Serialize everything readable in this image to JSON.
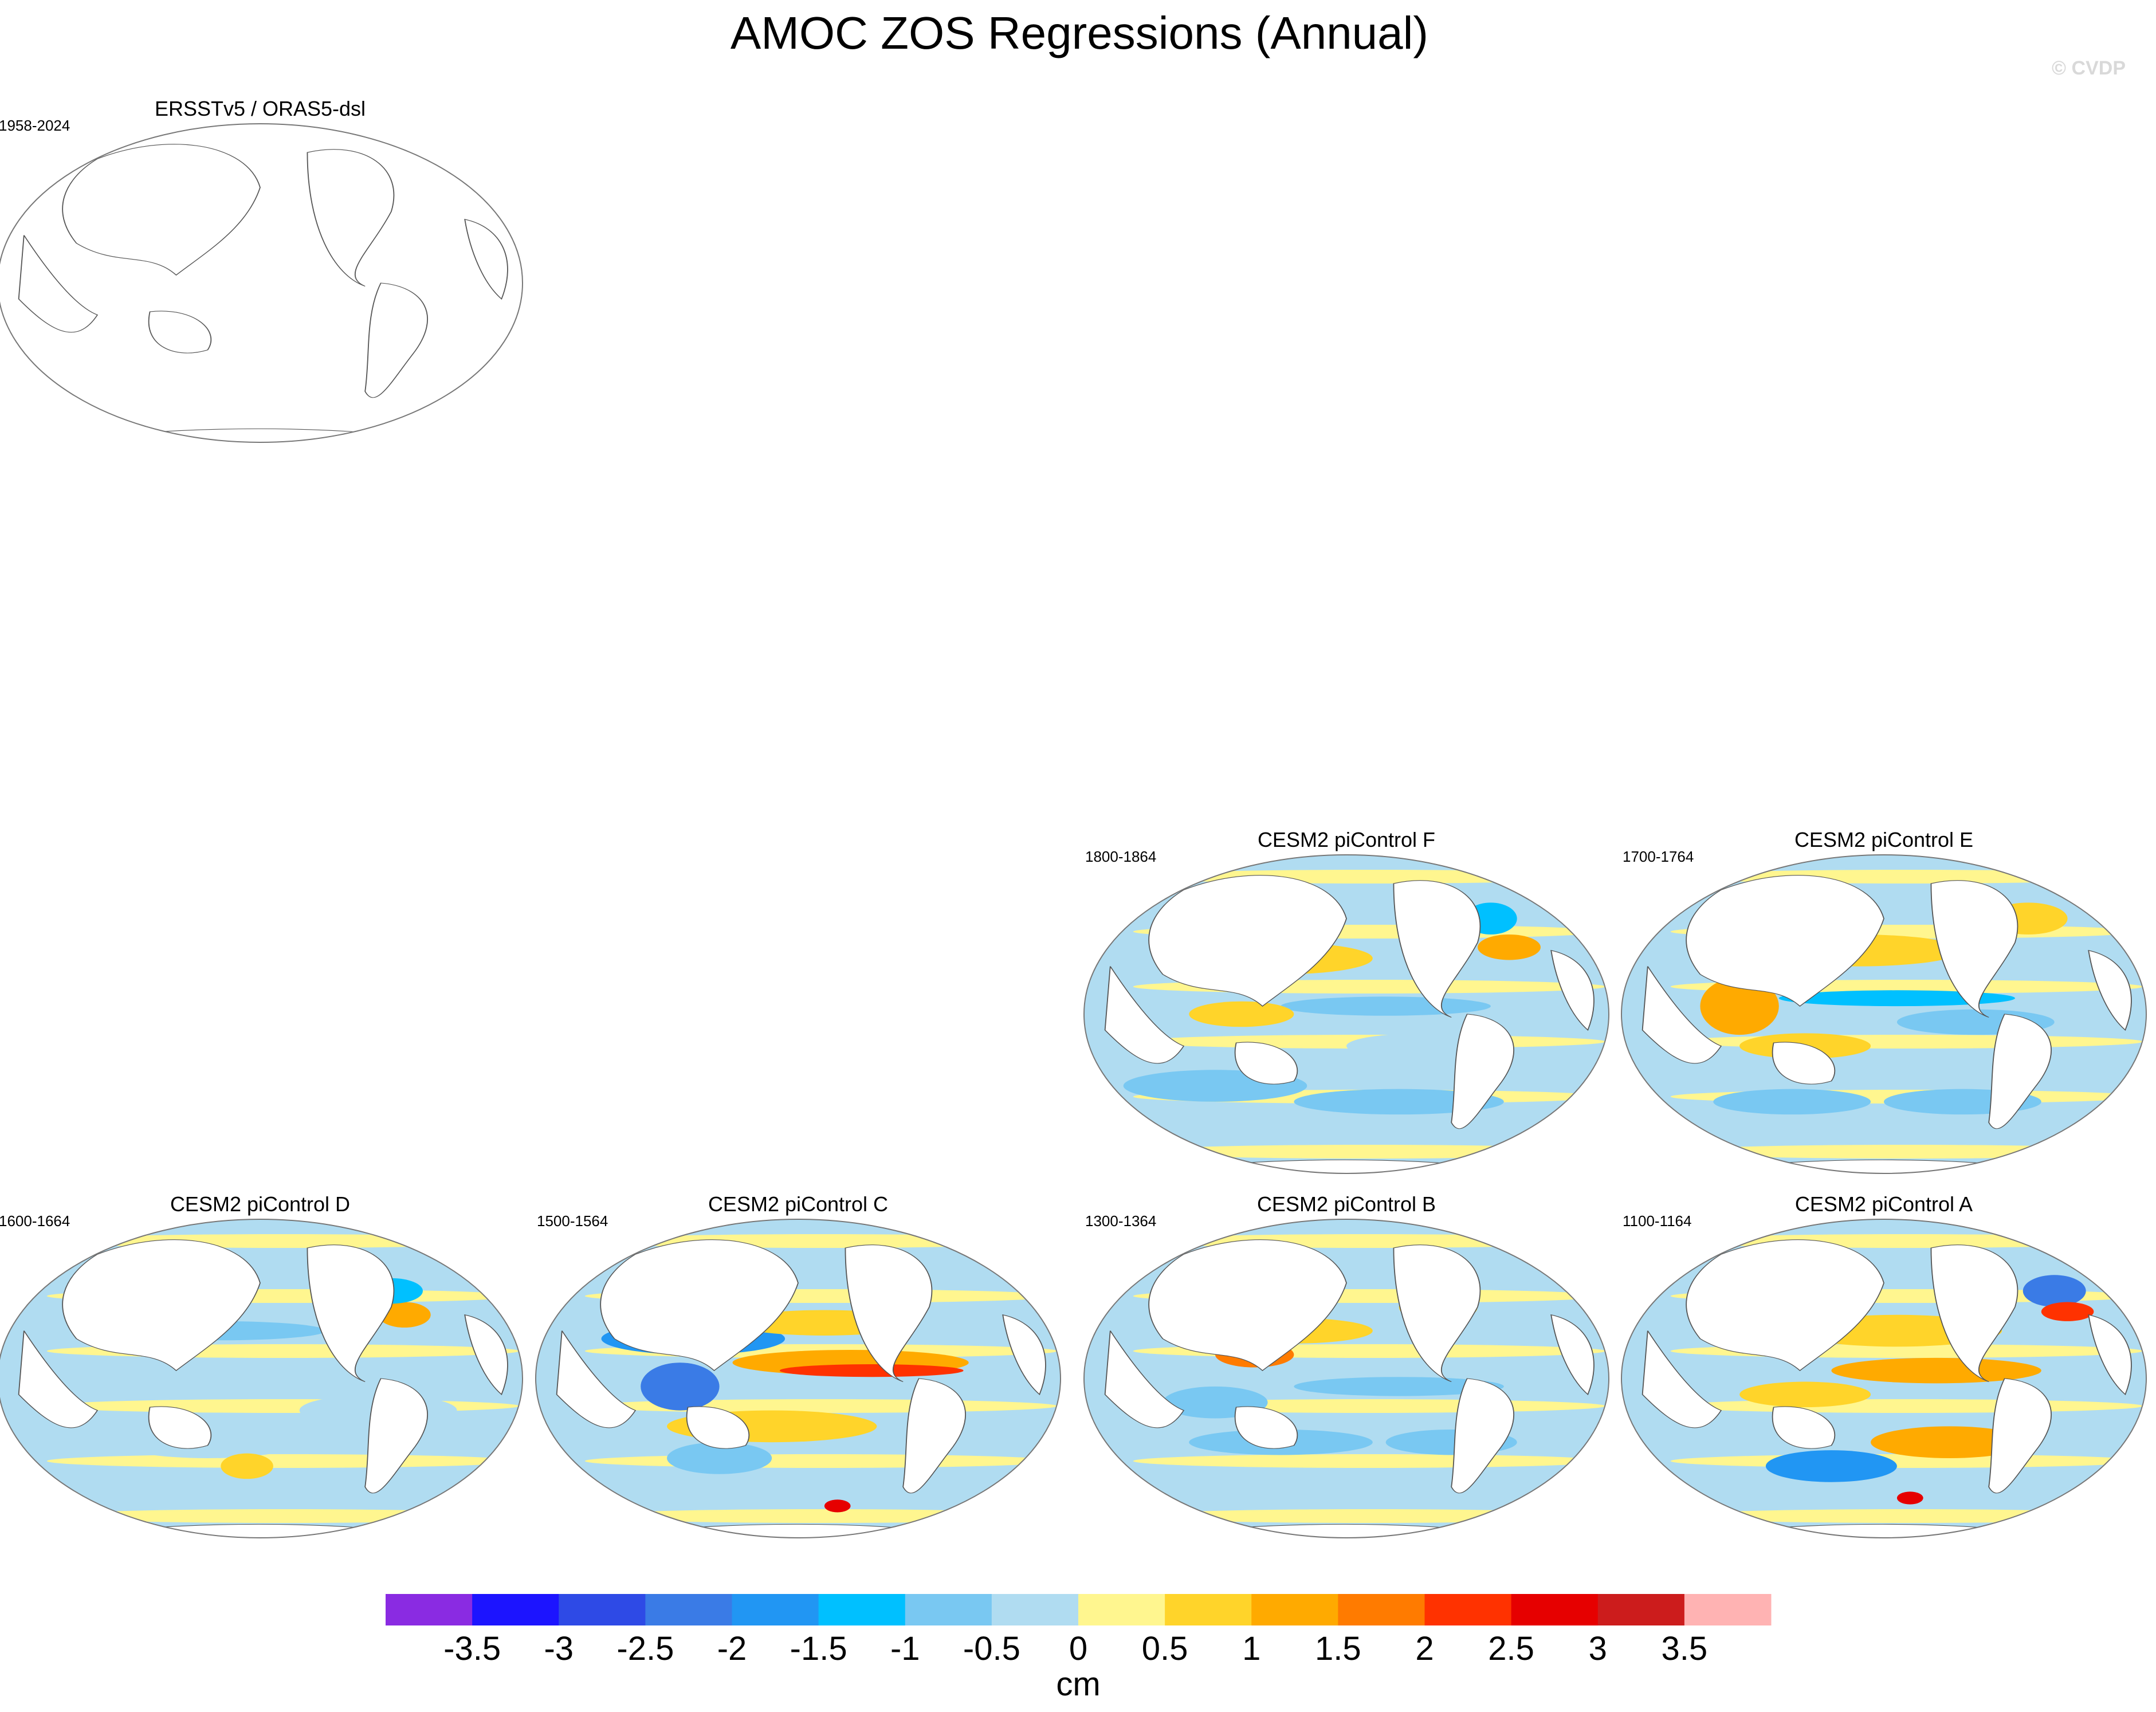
{
  "title": "AMOC ZOS Regressions (Annual)",
  "copyright": "© CVDP",
  "colorbar": {
    "colors": [
      "#8a2be2",
      "#1c14ff",
      "#2e4ae6",
      "#3a7be6",
      "#2196f3",
      "#00c0ff",
      "#79c8f2",
      "#b0dcf1",
      "#fff68f",
      "#ffd42a",
      "#ffaa00",
      "#ff7b00",
      "#ff3200",
      "#e60000",
      "#cc1c1c",
      "#ffb3b3"
    ],
    "ticks": [
      "-3.5",
      "-3",
      "-2.5",
      "-2",
      "-1.5",
      "-1",
      "-0.5",
      "0",
      "0.5",
      "1",
      "1.5",
      "2",
      "2.5",
      "3",
      "3.5"
    ],
    "units": "cm"
  },
  "chart_data": [
    {
      "type": "map",
      "title": "ERSSTv5 / ORAS5-dsl",
      "period": "1958-2024",
      "filled": false
    },
    {
      "type": "map",
      "title": "CESM2 piControl F",
      "period": "1800-1864",
      "filled": true,
      "pattern": "F"
    },
    {
      "type": "map",
      "title": "CESM2 piControl E",
      "period": "1700-1764",
      "filled": true,
      "pattern": "E"
    },
    {
      "type": "map",
      "title": "CESM2 piControl D",
      "period": "1600-1664",
      "filled": true,
      "pattern": "D"
    },
    {
      "type": "map",
      "title": "CESM2 piControl C",
      "period": "1500-1564",
      "filled": true,
      "pattern": "C"
    },
    {
      "type": "map",
      "title": "CESM2 piControl B",
      "period": "1300-1364",
      "filled": true,
      "pattern": "B"
    },
    {
      "type": "map",
      "title": "CESM2 piControl A",
      "period": "1100-1164",
      "filled": true,
      "pattern": "A"
    }
  ]
}
